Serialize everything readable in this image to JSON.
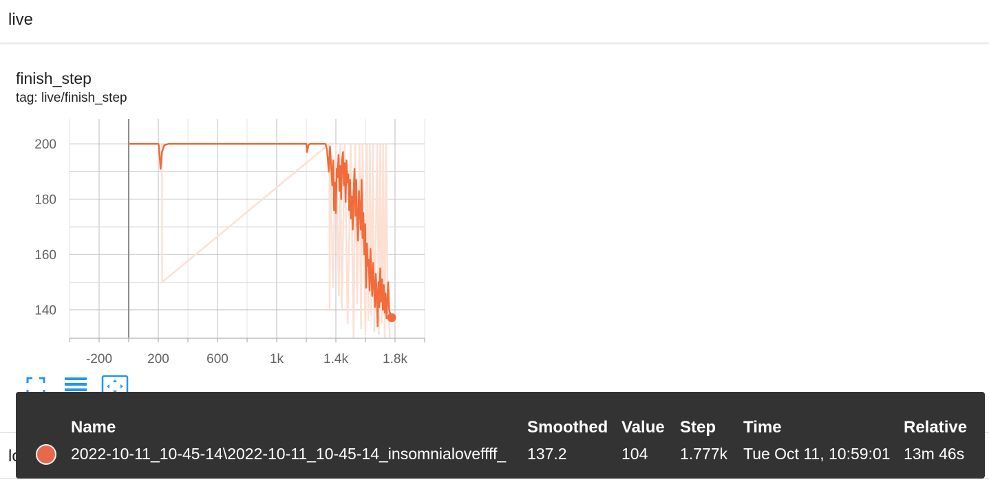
{
  "group": {
    "title": "live"
  },
  "card": {
    "title": "finish_step",
    "tag": "tag: live/finish_step"
  },
  "next_group": {
    "title": "loss"
  },
  "toolbar": {
    "fullscreen_icon": "fullscreen-icon",
    "log_scale_icon": "lines-icon",
    "fit_domain_icon": "fit-domain-icon",
    "accent_color": "#2196f3"
  },
  "tooltip": {
    "headers": {
      "name": "Name",
      "smoothed": "Smoothed",
      "value": "Value",
      "step": "Step",
      "time": "Time",
      "relative": "Relative"
    },
    "row": {
      "color": "#e8694a",
      "name": "2022-10-11_10-45-14\\2022-10-11_10-45-14_insomnialoveffff_",
      "smoothed": "137.2",
      "value": "104",
      "step": "1.777k",
      "time": "Tue Oct 11, 10:59:01",
      "relative": "13m 46s"
    }
  },
  "chart_data": {
    "type": "line",
    "title": "finish_step",
    "xlim": [
      -400,
      2000
    ],
    "ylim": [
      130,
      209
    ],
    "x_ticks": [
      -200,
      200,
      600,
      1000,
      1400,
      1800
    ],
    "x_tick_labels": [
      "-200",
      "200",
      "600",
      "1k",
      "1.4k",
      "1.8k"
    ],
    "y_ticks": [
      140,
      160,
      180,
      200
    ],
    "y_tick_labels": [
      "140",
      "160",
      "180",
      "200"
    ],
    "grid": true,
    "series_color": "#f26b3a",
    "raw_color": "#fde0d4",
    "series": [
      {
        "name": "smoothed",
        "x": [
          0,
          200,
          205,
          215,
          225,
          240,
          270,
          400,
          800,
          1200,
          1205,
          1215,
          1225,
          1330,
          1340,
          1352,
          1360,
          1368,
          1376,
          1382,
          1388,
          1394,
          1400,
          1406,
          1412,
          1418,
          1424,
          1430,
          1436,
          1442,
          1448,
          1454,
          1460,
          1466,
          1472,
          1478,
          1484,
          1490,
          1496,
          1502,
          1508,
          1514,
          1520,
          1526,
          1532,
          1538,
          1544,
          1550,
          1556,
          1562,
          1568,
          1574,
          1580,
          1586,
          1592,
          1598,
          1604,
          1610,
          1616,
          1622,
          1628,
          1634,
          1640,
          1646,
          1652,
          1658,
          1664,
          1670,
          1676,
          1682,
          1688,
          1694,
          1700,
          1706,
          1712,
          1718,
          1724,
          1730,
          1736,
          1742,
          1748,
          1754,
          1760,
          1766,
          1772,
          1777
        ],
        "y": [
          200,
          200,
          199,
          191,
          197,
          199.5,
          200,
          200,
          200,
          200,
          197,
          199.6,
          200,
          200,
          198,
          190,
          199,
          192,
          185,
          194,
          176,
          186,
          175,
          191,
          188,
          196,
          183,
          192,
          180,
          194,
          197,
          185,
          193,
          179,
          194,
          186,
          189,
          176,
          187,
          173,
          181,
          169,
          183,
          191,
          174,
          187,
          171,
          165,
          183,
          176,
          169,
          187,
          166,
          175,
          160,
          171,
          148,
          164,
          156,
          158,
          147,
          162,
          152,
          145,
          157,
          149,
          141,
          153,
          146,
          134,
          150,
          141,
          155,
          143,
          151,
          140,
          149,
          139,
          146,
          137,
          143,
          150,
          140,
          139,
          137.2,
          137.2
        ]
      },
      {
        "name": "raw",
        "x": [
          225,
          226,
          1356,
          1358,
          1362,
          1380,
          1400,
          1420,
          1430,
          1440,
          1460,
          1480,
          1500,
          1520,
          1530,
          1545,
          1560,
          1570,
          1580,
          1600,
          1610,
          1620,
          1630,
          1640,
          1650,
          1660,
          1680,
          1690,
          1700,
          1710,
          1720,
          1730,
          1740,
          1750,
          1760,
          1777
        ],
        "y": [
          200,
          150,
          200,
          140,
          200,
          148,
          200,
          145,
          200,
          140,
          200,
          135,
          200,
          130,
          200,
          142,
          200,
          133,
          200,
          131,
          200,
          136,
          200,
          138,
          200,
          132,
          200,
          131,
          200,
          135,
          200,
          130,
          200,
          140,
          138,
          104
        ]
      }
    ]
  }
}
